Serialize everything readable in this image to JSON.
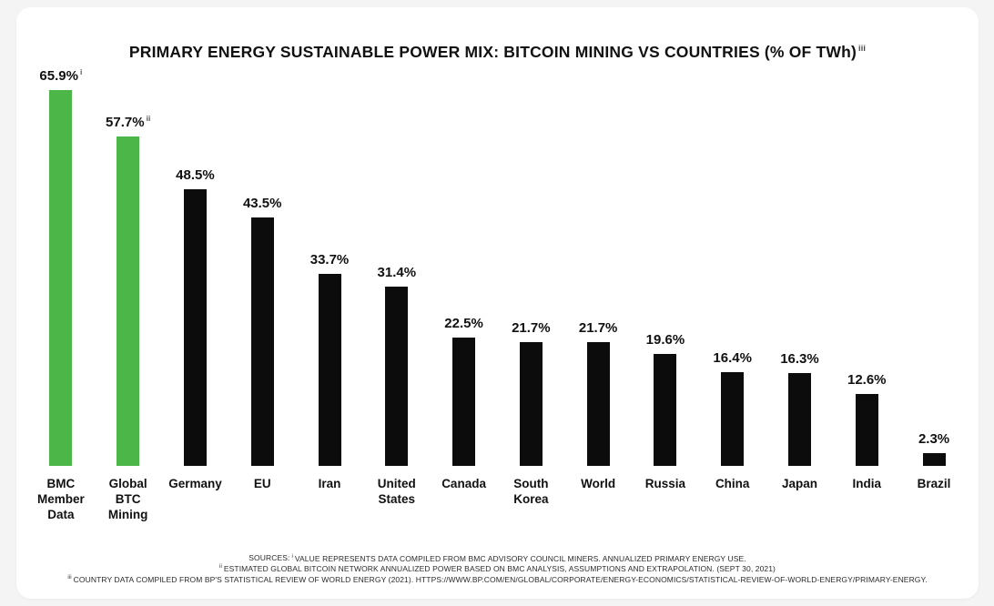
{
  "title": {
    "text": "PRIMARY ENERGY SUSTAINABLE POWER MIX: BITCOIN MINING VS COUNTRIES (% OF TWh)",
    "sup": "iii"
  },
  "chart_data": {
    "type": "bar",
    "title": "PRIMARY ENERGY SUSTAINABLE POWER MIX: BITCOIN MINING VS COUNTRIES (% OF TWh)",
    "categories": [
      "BMC\nMember\nData",
      "Global\nBTC\nMining",
      "Germany",
      "EU",
      "Iran",
      "United\nStates",
      "Canada",
      "South\nKorea",
      "World",
      "Russia",
      "China",
      "Japan",
      "India",
      "Brazil"
    ],
    "values": [
      65.9,
      57.7,
      48.5,
      43.5,
      33.7,
      31.4,
      22.5,
      21.7,
      21.7,
      19.6,
      16.4,
      16.3,
      12.6,
      2.3
    ],
    "value_labels": [
      "65.9%",
      "57.7%",
      "48.5%",
      "43.5%",
      "33.7%",
      "31.4%",
      "22.5%",
      "21.7%",
      "21.7%",
      "19.6%",
      "16.4%",
      "16.3%",
      "12.6%",
      "2.3%"
    ],
    "bar_sups": [
      "i",
      "ii",
      "",
      "",
      "",
      "",
      "",
      "",
      "",
      "",
      "",
      "",
      "",
      ""
    ],
    "highlight_indices": [
      0,
      1
    ],
    "colors": {
      "highlight": "#4cb648",
      "default": "#0c0c0c"
    },
    "xlabel": "",
    "ylabel": "",
    "ylim": [
      0,
      70
    ],
    "grid": false,
    "legend": null
  },
  "footer": {
    "lines": [
      {
        "prefix": "SOURCES:",
        "sup": "i",
        "text": "VALUE REPRESENTS DATA COMPILED FROM BMC ADVISORY COUNCIL MINERS. ANNUALIZED PRIMARY ENERGY USE."
      },
      {
        "prefix": "",
        "sup": "ii",
        "text": "ESTIMATED GLOBAL BITCOIN NETWORK ANNUALIZED POWER BASED ON BMC ANALYSIS, ASSUMPTIONS AND EXTRAPOLATION. (SEPT 30, 2021)"
      },
      {
        "prefix": "",
        "sup": "iii",
        "text": "COUNTRY DATA COMPILED FROM BP'S STATISTICAL REVIEW OF WORLD ENERGY (2021). HTTPS://WWW.BP.COM/EN/GLOBAL/CORPORATE/ENERGY-ECONOMICS/STATISTICAL-REVIEW-OF-WORLD-ENERGY/PRIMARY-ENERGY."
      }
    ]
  }
}
